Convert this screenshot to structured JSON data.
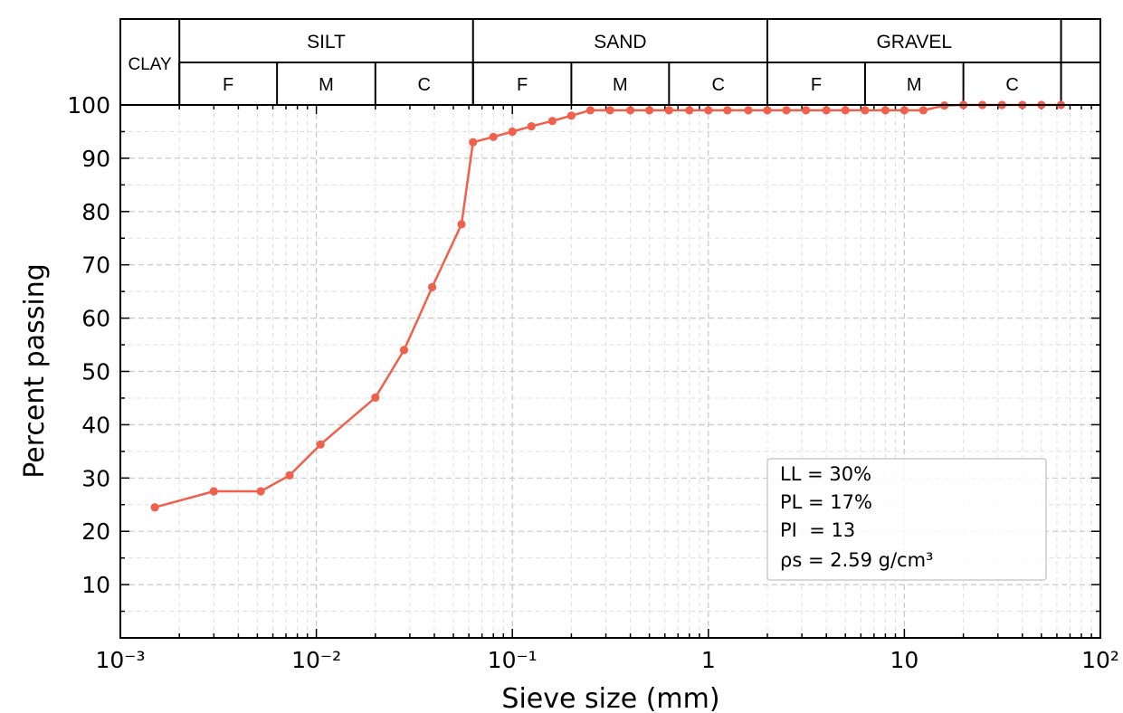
{
  "chart_data": {
    "type": "line",
    "xscale": "log",
    "xlabel": "Sieve size (mm)",
    "ylabel": "Percent passing",
    "xlim": [
      0.001,
      100
    ],
    "ylim": [
      0,
      100
    ],
    "grid": true,
    "x_tick_labels": [
      "10⁻³",
      "10⁻²",
      "10⁻¹",
      "1",
      "10",
      "10²"
    ],
    "y_tick_labels": [
      "10",
      "20",
      "30",
      "40",
      "50",
      "60",
      "70",
      "80",
      "90",
      "100"
    ],
    "line_color": "#f0604a",
    "series": [
      {
        "x": [
          0.0015,
          0.003,
          0.0052,
          0.0073,
          0.0105,
          0.02,
          0.028,
          0.039,
          0.055,
          0.063,
          0.08,
          0.1,
          0.125,
          0.16,
          0.2,
          0.25,
          0.315,
          0.4,
          0.5,
          0.63,
          0.8,
          1.0,
          1.25,
          1.6,
          2.0,
          2.5,
          3.15,
          4.0,
          5.0,
          6.3,
          8.0,
          10.0,
          12.5,
          16.0,
          20.0,
          25.0,
          31.5,
          40.0,
          50.0,
          63.0
        ],
        "y": [
          24.5,
          27.5,
          27.5,
          30.5,
          36.3,
          45.1,
          54.0,
          65.8,
          77.6,
          93.0,
          94.0,
          95.0,
          96.0,
          97.0,
          98.0,
          99.0,
          99.0,
          99.0,
          99.0,
          99.0,
          99.0,
          99.0,
          99.0,
          99.0,
          99.0,
          99.0,
          99.0,
          99.0,
          99.0,
          99.0,
          99.0,
          99.0,
          99.0,
          99.9,
          100.0,
          100.0,
          100.0,
          100.0,
          100.0,
          100.0
        ]
      }
    ],
    "classification_bands": {
      "major": [
        {
          "label": "CLAY",
          "from": 0.001,
          "to": 0.002
        },
        {
          "label": "SILT",
          "from": 0.002,
          "to": 0.063
        },
        {
          "label": "SAND",
          "from": 0.063,
          "to": 2
        },
        {
          "label": "GRAVEL",
          "from": 2,
          "to": 63
        },
        {
          "label": "",
          "from": 63,
          "to": 100
        }
      ],
      "minor": [
        {
          "label": "F",
          "from": 0.002,
          "to": 0.0063
        },
        {
          "label": "M",
          "from": 0.0063,
          "to": 0.02
        },
        {
          "label": "C",
          "from": 0.02,
          "to": 0.063
        },
        {
          "label": "F",
          "from": 0.063,
          "to": 0.2
        },
        {
          "label": "M",
          "from": 0.2,
          "to": 0.63
        },
        {
          "label": "C",
          "from": 0.63,
          "to": 2
        },
        {
          "label": "F",
          "from": 2,
          "to": 6.3
        },
        {
          "label": "M",
          "from": 6.3,
          "to": 20
        },
        {
          "label": "C",
          "from": 20,
          "to": 63
        }
      ]
    },
    "annotations": [
      "LL = 30%",
      "PL = 17%",
      "PI  = 13",
      "ρs = 2.59 g/cm³"
    ],
    "legend_placement": "lower-right"
  }
}
